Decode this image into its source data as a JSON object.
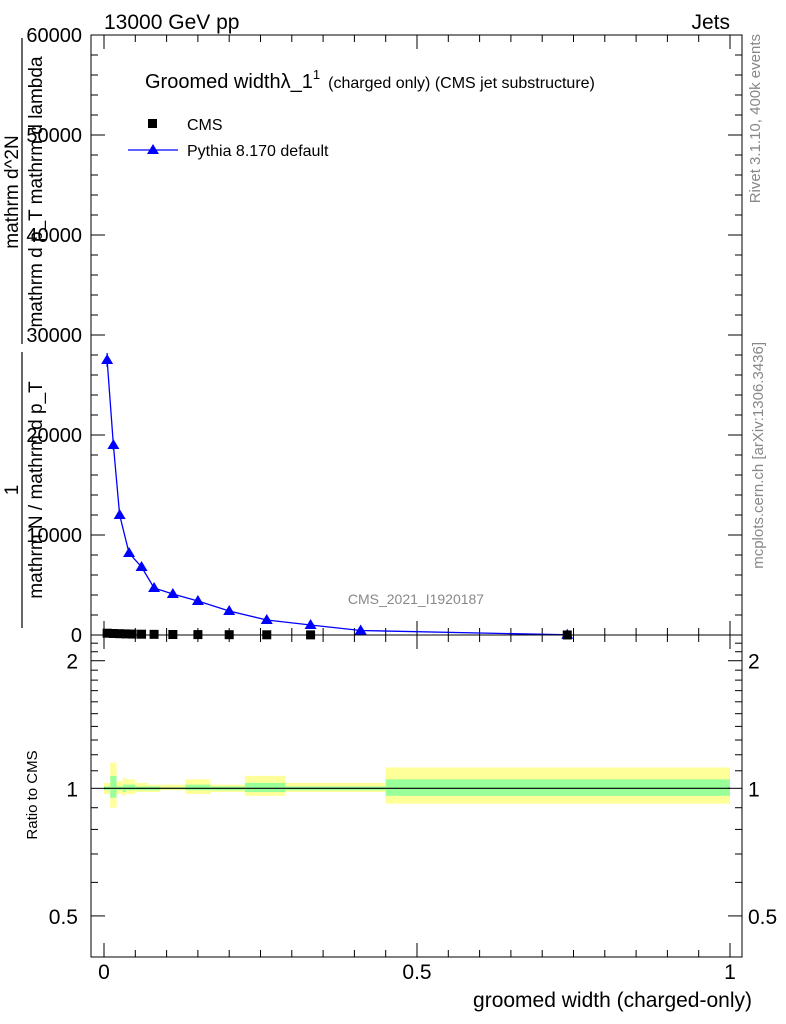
{
  "header": {
    "left": "13000 GeV pp",
    "right": "Jets"
  },
  "side_labels": {
    "rivet": "Rivet 3.1.10,  400k events",
    "mcplots": "mcplots.cern.ch [arXiv:1306.3436]"
  },
  "watermark": "CMS_2021_I1920187",
  "colors": {
    "pythia": "#0000ff",
    "band_outer": "#ffff99",
    "band_inner": "#99ff99",
    "cms": "#000000"
  },
  "chart_data": [
    {
      "type": "line",
      "title": "Groomed width",
      "title_symbol": "λ_1",
      "title_superscript": "1",
      "title_suffix": "(charged only) (CMS jet substructure)",
      "ylabel": "1 / mathrm N / mathrm d p_T mathrm d^2N / mathrm d p_T mathrm d lambda",
      "ylabel_parts": {
        "numerator_1": "1",
        "denominator_1": "mathrm N / mathrm d p_T",
        "numerator_2": "mathrm d^2N",
        "denominator_2": "mathrm d p_T mathrm d lambda"
      },
      "xlim": [
        0,
        1
      ],
      "ylim": [
        0,
        60000
      ],
      "yticks": [
        0,
        10000,
        20000,
        30000,
        40000,
        50000,
        60000
      ],
      "ytick_labels": [
        "0",
        "10000",
        "20000",
        "30000",
        "40000",
        "50000",
        "60000"
      ],
      "legend_position": "top-left",
      "series": [
        {
          "name": "CMS",
          "marker": "square",
          "x": [
            0.005,
            0.015,
            0.025,
            0.035,
            0.045,
            0.06,
            0.08,
            0.11,
            0.15,
            0.2,
            0.26,
            0.33,
            0.74
          ],
          "y": [
            180,
            150,
            130,
            110,
            95,
            80,
            65,
            50,
            40,
            30,
            20,
            12,
            3
          ]
        },
        {
          "name": "Pythia 8.170 default",
          "marker": "triangle",
          "x": [
            0.005,
            0.015,
            0.025,
            0.04,
            0.06,
            0.08,
            0.11,
            0.15,
            0.2,
            0.26,
            0.33,
            0.41,
            0.74
          ],
          "y": [
            27500,
            19000,
            12000,
            8200,
            6800,
            4700,
            4100,
            3400,
            2400,
            1500,
            1000,
            450,
            20
          ],
          "yerr": [
            700,
            500,
            350,
            250,
            200,
            150,
            120,
            100,
            80,
            60,
            40,
            25,
            5
          ]
        }
      ]
    },
    {
      "type": "area",
      "ylabel": "Ratio to CMS",
      "xlabel": "groomed width (charged-only)",
      "xlim": [
        0,
        1
      ],
      "ylim": [
        0.4,
        2.3
      ],
      "log_y": true,
      "yticks": [
        0.5,
        1,
        2
      ],
      "ytick_labels": [
        "0.5",
        "1",
        "2"
      ],
      "xticks": [
        0,
        0.5,
        1
      ],
      "xtick_labels": [
        "0",
        "0.5",
        "1"
      ],
      "band_edges": [
        0.0,
        0.01,
        0.02,
        0.03,
        0.035,
        0.05,
        0.07,
        0.09,
        0.13,
        0.17,
        0.225,
        0.29,
        0.365,
        0.45,
        1.0
      ],
      "band_outer": [
        [
          0.97,
          1.03
        ],
        [
          0.9,
          1.15
        ],
        [
          0.97,
          1.04
        ],
        [
          0.96,
          1.06
        ],
        [
          0.97,
          1.05
        ],
        [
          0.98,
          1.03
        ],
        [
          0.98,
          1.02
        ],
        [
          0.99,
          1.02
        ],
        [
          0.97,
          1.05
        ],
        [
          0.98,
          1.02
        ],
        [
          0.96,
          1.07
        ],
        [
          0.98,
          1.03
        ],
        [
          0.98,
          1.03
        ],
        [
          0.92,
          1.12
        ]
      ],
      "band_inner": [
        [
          0.99,
          1.01
        ],
        [
          0.95,
          1.07
        ],
        [
          0.99,
          1.01
        ],
        [
          0.98,
          1.02
        ],
        [
          0.99,
          1.02
        ],
        [
          0.99,
          1.01
        ],
        [
          0.99,
          1.01
        ],
        [
          0.995,
          1.005
        ],
        [
          0.99,
          1.02
        ],
        [
          0.99,
          1.01
        ],
        [
          0.98,
          1.03
        ],
        [
          0.99,
          1.01
        ],
        [
          0.99,
          1.01
        ],
        [
          0.96,
          1.05
        ]
      ],
      "series": [
        {
          "name": "Pythia 8.170 default",
          "x": [
            0.005,
            0.015,
            0.025,
            0.04,
            0.06,
            0.08,
            0.11,
            0.15,
            0.2,
            0.26,
            0.33,
            0.41,
            0.74
          ],
          "y": [
            1.0,
            1.0,
            1.0,
            1.0,
            1.0,
            1.0,
            1.0,
            1.0,
            1.0,
            1.0,
            1.0,
            1.0,
            1.0
          ]
        }
      ]
    }
  ]
}
